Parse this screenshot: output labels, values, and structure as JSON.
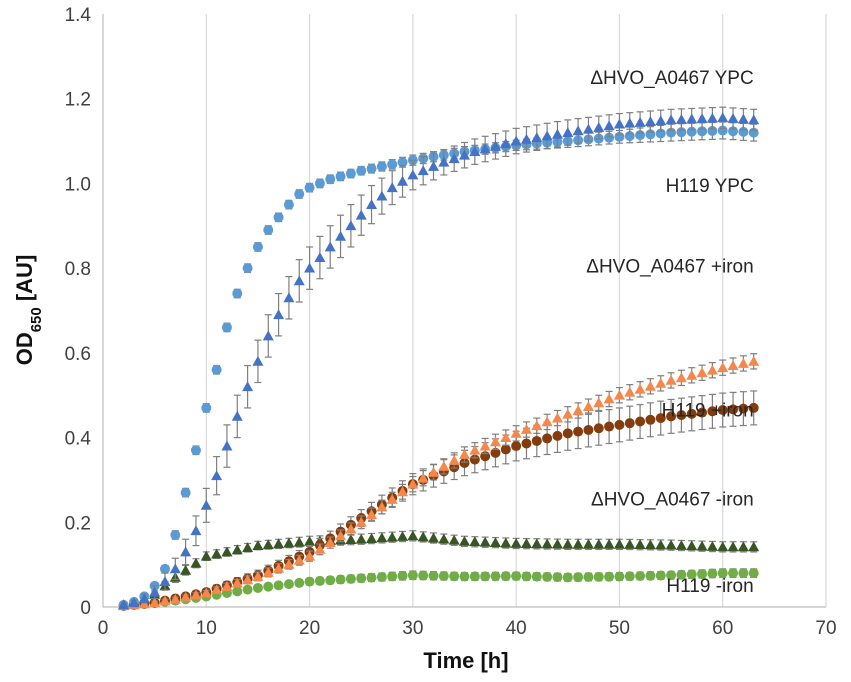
{
  "chart_data": {
    "type": "scatter",
    "title": "",
    "xlabel": "Time [h]",
    "ylabel_main": "OD",
    "ylabel_sub": "650",
    "ylabel_tail": " [AU]",
    "xlim": [
      0,
      70
    ],
    "ylim": [
      0,
      1.4
    ],
    "xticks": [
      "0",
      "10",
      "20",
      "30",
      "40",
      "50",
      "60",
      "70"
    ],
    "yticks": [
      "0",
      "0.2",
      "0.4",
      "0.6",
      "0.8",
      "1.0",
      "1.2",
      "1.4"
    ],
    "grid": "vertical",
    "series": [
      {
        "name": "H119 -iron",
        "label": "H119 -iron",
        "marker": "circle",
        "color": "#70ad47",
        "label_at": [
          63,
          0.035
        ],
        "label_anchor": "end",
        "x": [
          2,
          3,
          5,
          7,
          10,
          15,
          20,
          25,
          30,
          35,
          40,
          45,
          50,
          55,
          60,
          63
        ],
        "y": [
          0.003,
          0.006,
          0.01,
          0.015,
          0.025,
          0.045,
          0.06,
          0.068,
          0.075,
          0.072,
          0.073,
          0.07,
          0.072,
          0.075,
          0.08,
          0.08
        ],
        "err": [
          0.002,
          0.002,
          0.003,
          0.004,
          0.005,
          0.006,
          0.008,
          0.009,
          0.01,
          0.009,
          0.009,
          0.009,
          0.009,
          0.009,
          0.01,
          0.01
        ]
      },
      {
        "name": "ΔHVO_A0467 -iron",
        "label": "ΔHVO_A0467 -iron",
        "marker": "triangle",
        "color": "#375623",
        "label_at": [
          63,
          0.24
        ],
        "label_anchor": "end",
        "x": [
          2,
          3,
          5,
          7,
          10,
          15,
          20,
          25,
          30,
          35,
          40,
          45,
          50,
          55,
          60,
          63
        ],
        "y": [
          0.005,
          0.01,
          0.03,
          0.07,
          0.12,
          0.145,
          0.155,
          0.16,
          0.168,
          0.155,
          0.15,
          0.148,
          0.148,
          0.146,
          0.142,
          0.142
        ],
        "err": [
          0.003,
          0.005,
          0.008,
          0.012,
          0.01,
          0.01,
          0.012,
          0.012,
          0.012,
          0.012,
          0.012,
          0.012,
          0.012,
          0.012,
          0.012,
          0.012
        ]
      },
      {
        "name": "H119 +iron",
        "label": "H119 +iron",
        "marker": "circle",
        "color": "#843c0c",
        "label_at": [
          63,
          0.45
        ],
        "label_anchor": "end",
        "x": [
          2,
          3,
          5,
          7,
          10,
          15,
          20,
          25,
          30,
          35,
          40,
          45,
          50,
          55,
          60,
          63
        ],
        "y": [
          0.003,
          0.005,
          0.01,
          0.02,
          0.035,
          0.075,
          0.13,
          0.21,
          0.29,
          0.34,
          0.38,
          0.41,
          0.43,
          0.45,
          0.465,
          0.47
        ],
        "err": [
          0.002,
          0.003,
          0.004,
          0.005,
          0.008,
          0.012,
          0.015,
          0.02,
          0.025,
          0.03,
          0.035,
          0.04,
          0.04,
          0.04,
          0.04,
          0.04
        ]
      },
      {
        "name": "ΔHVO_A0467 +iron",
        "label": "ΔHVO_A0467 +iron",
        "marker": "triangle",
        "color": "#f4874b",
        "label_at": [
          63,
          0.79
        ],
        "label_anchor": "end",
        "x": [
          2,
          3,
          5,
          7,
          10,
          15,
          20,
          25,
          30,
          35,
          40,
          45,
          50,
          55,
          60,
          63
        ],
        "y": [
          0.003,
          0.005,
          0.01,
          0.018,
          0.033,
          0.072,
          0.12,
          0.2,
          0.29,
          0.36,
          0.41,
          0.455,
          0.5,
          0.535,
          0.565,
          0.58
        ],
        "err": [
          0.002,
          0.003,
          0.004,
          0.005,
          0.006,
          0.01,
          0.012,
          0.015,
          0.018,
          0.018,
          0.018,
          0.018,
          0.018,
          0.018,
          0.018,
          0.018
        ]
      },
      {
        "name": "H119 YPC",
        "label": "H119 YPC",
        "marker": "circle",
        "color": "#5b9bd5",
        "label_at": [
          63,
          0.98
        ],
        "label_anchor": "end",
        "x": [
          2,
          3,
          4,
          5,
          6,
          7,
          8,
          9,
          10,
          11,
          12,
          13,
          14,
          15,
          16,
          17,
          18,
          19,
          20,
          22,
          25,
          30,
          35,
          40,
          45,
          50,
          55,
          60,
          63
        ],
        "y": [
          0.005,
          0.012,
          0.025,
          0.05,
          0.09,
          0.17,
          0.27,
          0.37,
          0.47,
          0.56,
          0.66,
          0.74,
          0.8,
          0.85,
          0.89,
          0.92,
          0.95,
          0.975,
          0.99,
          1.01,
          1.03,
          1.055,
          1.075,
          1.09,
          1.1,
          1.11,
          1.12,
          1.125,
          1.12
        ],
        "err": [
          0.003,
          0.004,
          0.005,
          0.006,
          0.008,
          0.01,
          0.01,
          0.01,
          0.01,
          0.01,
          0.01,
          0.01,
          0.01,
          0.01,
          0.01,
          0.01,
          0.01,
          0.01,
          0.01,
          0.01,
          0.01,
          0.012,
          0.012,
          0.012,
          0.015,
          0.015,
          0.02,
          0.02,
          0.02
        ]
      },
      {
        "name": "ΔHVO_A0467 YPC",
        "label": "ΔHVO_A0467 YPC",
        "marker": "triangle",
        "color": "#4472c4",
        "label_at": [
          63,
          1.235
        ],
        "label_anchor": "end",
        "x": [
          2,
          3,
          4,
          5,
          6,
          7,
          8,
          9,
          10,
          11,
          12,
          13,
          14,
          15,
          16,
          17,
          18,
          19,
          20,
          22,
          24,
          26,
          28,
          30,
          33,
          36,
          40,
          45,
          50,
          55,
          60,
          63
        ],
        "y": [
          0.005,
          0.01,
          0.02,
          0.035,
          0.06,
          0.09,
          0.13,
          0.18,
          0.24,
          0.31,
          0.38,
          0.45,
          0.52,
          0.58,
          0.64,
          0.69,
          0.73,
          0.77,
          0.8,
          0.85,
          0.9,
          0.95,
          0.99,
          1.02,
          1.05,
          1.075,
          1.1,
          1.12,
          1.14,
          1.15,
          1.155,
          1.15
        ],
        "err": [
          0.004,
          0.006,
          0.01,
          0.015,
          0.02,
          0.025,
          0.03,
          0.035,
          0.04,
          0.045,
          0.05,
          0.05,
          0.05,
          0.05,
          0.05,
          0.05,
          0.05,
          0.05,
          0.05,
          0.05,
          0.05,
          0.045,
          0.04,
          0.035,
          0.03,
          0.03,
          0.03,
          0.03,
          0.025,
          0.025,
          0.025,
          0.025
        ]
      }
    ]
  }
}
